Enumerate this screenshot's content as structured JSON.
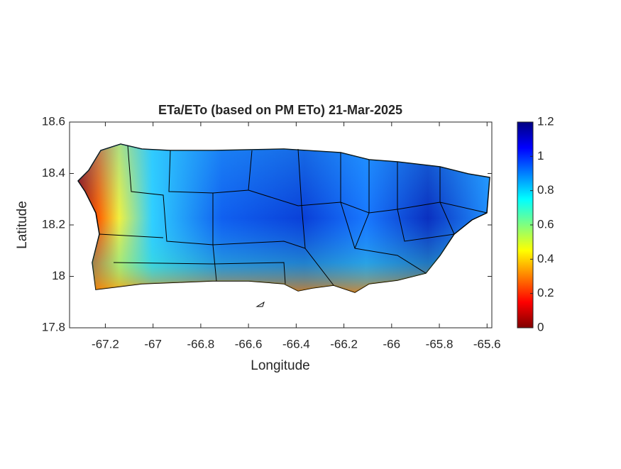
{
  "chart_data": {
    "type": "map",
    "title": "ETa/ETo (based on PM ETo) 21-Mar-2025",
    "xlabel": "Longitude",
    "ylabel": "Latitude",
    "xlim": [
      -67.35,
      -65.58
    ],
    "ylim": [
      17.8,
      18.6
    ],
    "xticks": [
      -67.2,
      -67,
      -66.8,
      -66.6,
      -66.4,
      -66.2,
      -66,
      -65.8,
      -65.6
    ],
    "yticks": [
      17.8,
      18,
      18.2,
      18.4,
      18.6
    ],
    "colormap": "jet",
    "clim": [
      0,
      1.2
    ],
    "cticks": [
      0,
      0.2,
      0.4,
      0.6,
      0.8,
      1,
      1.2
    ]
  }
}
